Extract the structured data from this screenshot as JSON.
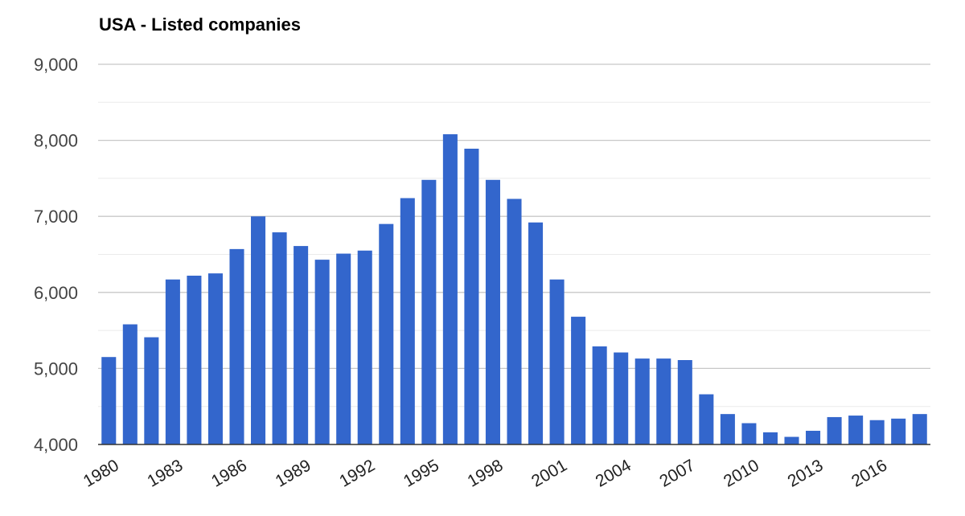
{
  "title": "USA - Listed companies",
  "colors": {
    "bar": "#3366cc",
    "major_grid": "#c8c8c8",
    "minor_grid": "#ebebeb",
    "axis": "#333333"
  },
  "chart_data": {
    "type": "bar",
    "title": "USA - Listed companies",
    "xlabel": "",
    "ylabel": "",
    "ylim": [
      4000,
      9000
    ],
    "yticks": [
      4000,
      5000,
      6000,
      7000,
      8000,
      9000
    ],
    "ytick_labels": [
      "4,000",
      "5,000",
      "6,000",
      "7,000",
      "8,000",
      "9,000"
    ],
    "grid": true,
    "legend": "none",
    "xtick_labels": [
      "1980",
      "1983",
      "1986",
      "1989",
      "1992",
      "1995",
      "1998",
      "2001",
      "2004",
      "2007",
      "2010",
      "2013",
      "2016"
    ],
    "categories": [
      "1980",
      "1981",
      "1982",
      "1983",
      "1984",
      "1985",
      "1986",
      "1987",
      "1988",
      "1989",
      "1990",
      "1991",
      "1992",
      "1993",
      "1994",
      "1995",
      "1996",
      "1997",
      "1998",
      "1999",
      "2000",
      "2001",
      "2002",
      "2003",
      "2004",
      "2005",
      "2006",
      "2007",
      "2008",
      "2009",
      "2010",
      "2011",
      "2012",
      "2013",
      "2014",
      "2015",
      "2016",
      "2017",
      "2018"
    ],
    "values": [
      5150,
      5580,
      5410,
      6170,
      6220,
      6250,
      6570,
      7000,
      6790,
      6610,
      6430,
      6510,
      6550,
      6900,
      7240,
      7480,
      8080,
      7890,
      7480,
      7230,
      6920,
      6170,
      5680,
      5290,
      5210,
      5130,
      5130,
      5110,
      4660,
      4400,
      4280,
      4160,
      4100,
      4180,
      4360,
      4380,
      4320,
      4340,
      4400
    ]
  }
}
